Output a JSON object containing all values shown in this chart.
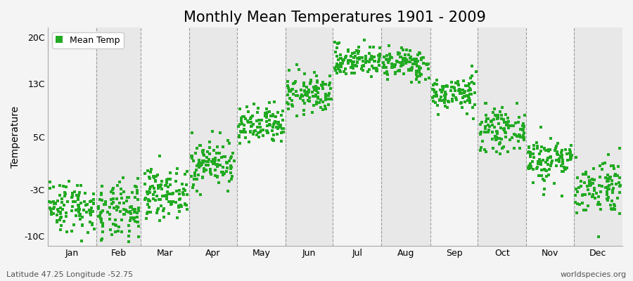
{
  "title": "Monthly Mean Temperatures 1901 - 2009",
  "ylabel": "Temperature",
  "xlabel_months": [
    "Jan",
    "Feb",
    "Mar",
    "Apr",
    "May",
    "Jun",
    "Jul",
    "Aug",
    "Sep",
    "Oct",
    "Nov",
    "Dec"
  ],
  "subtitle_left": "Latitude 47.25 Longitude -52.75",
  "subtitle_right": "worldspecies.org",
  "legend_label": "Mean Temp",
  "yticks": [
    -10,
    -3,
    5,
    13,
    20
  ],
  "ytick_labels": [
    "-10C",
    "-3C",
    "5C",
    "13C",
    "20C"
  ],
  "ylim": [
    -11.5,
    21.5
  ],
  "xlim": [
    0,
    365
  ],
  "marker_color": "#22AA22",
  "marker": "s",
  "marker_size": 2.5,
  "background_color": "#F4F4F4",
  "band_color_light": "#F4F4F4",
  "band_color_dark": "#E8E8E8",
  "grid_color": "#888888",
  "title_fontsize": 15,
  "label_fontsize": 10,
  "tick_fontsize": 9,
  "monthly_means": [
    -5.5,
    -6.5,
    -3.5,
    1.0,
    6.5,
    11.5,
    16.5,
    16.0,
    11.5,
    6.0,
    1.5,
    -2.5
  ],
  "monthly_stds": [
    2.0,
    2.2,
    1.8,
    1.8,
    1.5,
    1.5,
    1.2,
    1.2,
    1.3,
    1.5,
    1.8,
    2.2
  ],
  "days_in_month": [
    31,
    28,
    31,
    30,
    31,
    30,
    31,
    31,
    30,
    31,
    30,
    31
  ],
  "n_years": 109
}
